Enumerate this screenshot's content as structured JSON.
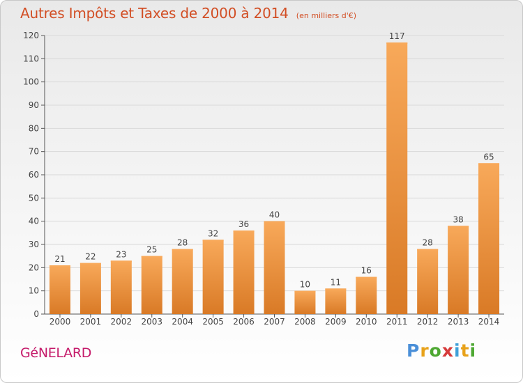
{
  "title": "Autres Impôts et Taxes de 2000 à 2014",
  "subtitle": "(en milliers d'€)",
  "town": "GéNELARD",
  "brand": {
    "letters": [
      "P",
      "r",
      "o",
      "x",
      "i",
      "t",
      "i"
    ],
    "colors": [
      "#4a8fd8",
      "#e8a21a",
      "#4ea832",
      "#d63a3a",
      "#3fa0d8",
      "#e8a21a",
      "#4ea832"
    ]
  },
  "colors": {
    "bar_light": "#f8a95a",
    "bar_dark": "#d97a26",
    "axis": "#555555",
    "grid": "#d9d9d9",
    "text": "#444444"
  },
  "chart_data": {
    "type": "bar",
    "categories": [
      "2000",
      "2001",
      "2002",
      "2003",
      "2004",
      "2005",
      "2006",
      "2007",
      "2008",
      "2009",
      "2010",
      "2011",
      "2012",
      "2013",
      "2014"
    ],
    "values": [
      21,
      22,
      23,
      25,
      28,
      32,
      36,
      40,
      10,
      11,
      16,
      117,
      28,
      38,
      65
    ],
    "data_labels": [
      "21",
      "22",
      "23",
      "25",
      "28",
      "32",
      "36",
      "40",
      "10",
      "11",
      "16",
      "117",
      "28",
      "38",
      "65"
    ],
    "yticks": [
      0,
      10,
      20,
      30,
      40,
      50,
      60,
      70,
      80,
      90,
      100,
      110,
      120
    ],
    "ylim": [
      0,
      120
    ],
    "grid": true,
    "legend": "none"
  }
}
